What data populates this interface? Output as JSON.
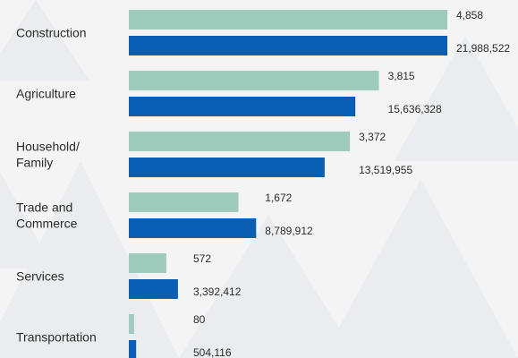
{
  "chart_data": {
    "type": "bar",
    "orientation": "horizontal",
    "categories": [
      [
        "Construction"
      ],
      [
        "Agriculture"
      ],
      [
        "Household/",
        "Family"
      ],
      [
        "Trade and",
        "Commerce"
      ],
      [
        "Services"
      ],
      [
        "Transportation"
      ]
    ],
    "series": [
      {
        "values": [
          4858,
          3815,
          3372,
          1672,
          572,
          80
        ],
        "labels": [
          "4,858",
          "3,815",
          "3,372",
          "1,672",
          "572",
          "80"
        ],
        "color": "#9fcbbd"
      },
      {
        "values": [
          21988522,
          15636328,
          13519955,
          8789912,
          3392412,
          504116
        ],
        "labels": [
          "21,988,522",
          "15,636,328",
          "13,519,955",
          "8,789,912",
          "3,392,412",
          "504,116"
        ],
        "color": "#0a5fb4"
      }
    ],
    "grid": false,
    "legend": "none"
  },
  "colors": {
    "background": "#f4f4f4",
    "pattern": "#e8ebee",
    "text": "#2b2b2b"
  }
}
